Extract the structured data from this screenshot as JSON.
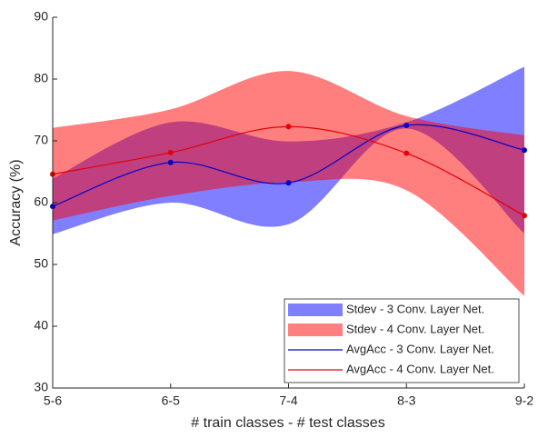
{
  "chart_data": {
    "type": "line",
    "xlabel": "# train classes - # test classes",
    "ylabel": "Accuracy (%)",
    "categories": [
      "5-6",
      "6-5",
      "7-4",
      "8-3",
      "9-2"
    ],
    "series": [
      {
        "name": "AvgAcc - 3 Conv. Layer Net.",
        "color": "#0000cc",
        "values": [
          59.4,
          66.5,
          63.2,
          72.5,
          68.5
        ],
        "band_name": "Stdev - 3 Conv. Layer Net.",
        "band_color": "#0000ff",
        "stdev": [
          4.5,
          6.5,
          6.7,
          0.5,
          13.5
        ]
      },
      {
        "name": "AvgAcc - 4 Conv. Layer Net.",
        "color": "#e60000",
        "values": [
          64.6,
          68.1,
          72.3,
          68.0,
          57.9
        ],
        "band_name": "Stdev - 4 Conv. Layer Net.",
        "band_color": "#ff0000",
        "stdev": [
          7.5,
          7.0,
          9.0,
          6.0,
          13.0
        ]
      }
    ],
    "ylim": [
      30,
      90
    ],
    "yticks": [
      30,
      40,
      50,
      60,
      70,
      80,
      90
    ],
    "legend": "lower right"
  }
}
